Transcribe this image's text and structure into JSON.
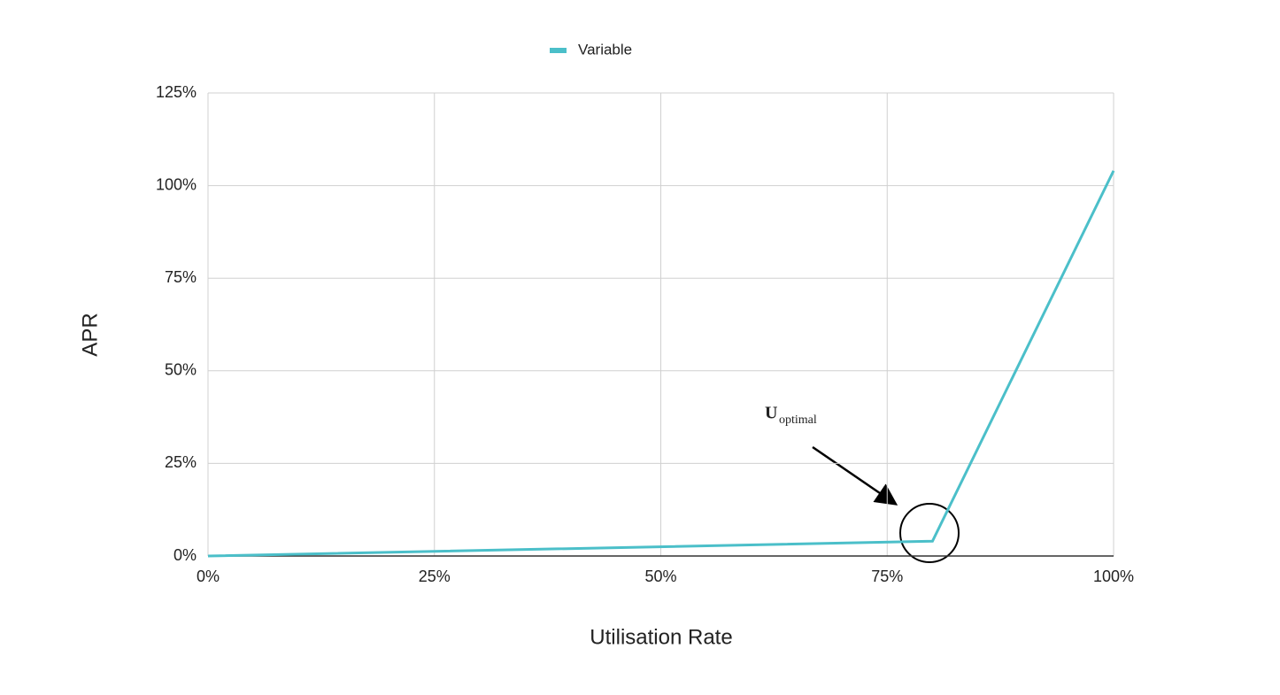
{
  "chart_data": {
    "type": "line",
    "x": [
      0,
      80,
      100
    ],
    "series": [
      {
        "name": "Variable",
        "color": "#4bbfc9",
        "values": [
          0,
          4,
          104
        ]
      }
    ],
    "xlim": [
      0,
      100
    ],
    "xticks": [
      {
        "value": 0,
        "label": "0%"
      },
      {
        "value": 25,
        "label": "25%"
      },
      {
        "value": 50,
        "label": "50%"
      },
      {
        "value": 75,
        "label": "75%"
      },
      {
        "value": 100,
        "label": "100%"
      }
    ],
    "ylim": [
      0,
      125
    ],
    "yticks": [
      {
        "value": 0,
        "label": "0%"
      },
      {
        "value": 25,
        "label": "25%"
      },
      {
        "value": 50,
        "label": "50%"
      },
      {
        "value": 75,
        "label": "75%"
      },
      {
        "value": 100,
        "label": "100%"
      },
      {
        "value": 125,
        "label": "125%"
      }
    ],
    "xlabel": "Utilisation Rate",
    "ylabel": "APR",
    "annotation": {
      "main": "U",
      "sub": "optimal"
    },
    "grid": true,
    "legend": "top"
  }
}
